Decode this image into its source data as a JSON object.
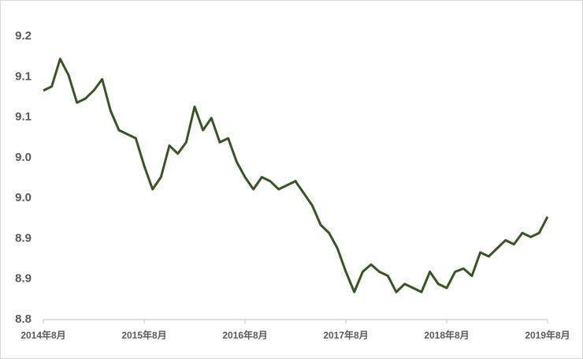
{
  "chart_data": {
    "type": "line",
    "categories": [
      "2014年8月",
      null,
      null,
      null,
      null,
      null,
      null,
      null,
      null,
      null,
      null,
      null,
      "2015年8月",
      null,
      null,
      null,
      null,
      null,
      null,
      null,
      null,
      null,
      null,
      null,
      "2016年8月",
      null,
      null,
      null,
      null,
      null,
      null,
      null,
      null,
      null,
      null,
      null,
      "2017年8月",
      null,
      null,
      null,
      null,
      null,
      null,
      null,
      null,
      null,
      null,
      null,
      "2018年8月",
      null,
      null,
      null,
      null,
      null,
      null,
      null,
      null,
      null,
      null,
      null,
      "2019年8月"
    ],
    "series": [
      {
        "color": "#375623",
        "values": [
          9.083,
          9.088,
          9.122,
          9.102,
          9.068,
          9.073,
          9.083,
          9.097,
          9.058,
          9.034,
          9.029,
          9.024,
          8.99,
          8.961,
          8.976,
          9.015,
          9.005,
          9.019,
          9.063,
          9.034,
          9.049,
          9.019,
          9.024,
          8.995,
          8.976,
          8.961,
          8.976,
          8.971,
          8.961,
          8.966,
          8.971,
          8.956,
          8.941,
          8.917,
          8.907,
          8.888,
          8.859,
          8.834,
          8.859,
          8.868,
          8.859,
          8.854,
          8.834,
          8.844,
          8.839,
          8.834,
          8.859,
          8.844,
          8.839,
          8.859,
          8.863,
          8.854,
          8.883,
          8.878,
          8.888,
          8.898,
          8.893,
          8.907,
          8.902,
          8.907,
          8.927
        ]
      }
    ],
    "ylim": [
      8.8,
      9.15
    ],
    "yticks": [
      {
        "value": 8.8,
        "label": "8.8"
      },
      {
        "value": 8.85,
        "label": "8.9"
      },
      {
        "value": 8.9,
        "label": "8.9"
      },
      {
        "value": 8.95,
        "label": "9.0"
      },
      {
        "value": 9.0,
        "label": "9.0"
      },
      {
        "value": 9.05,
        "label": "9.1"
      },
      {
        "value": 9.1,
        "label": "9.1"
      },
      {
        "value": 9.15,
        "label": "9.2"
      }
    ],
    "grid": false
  }
}
